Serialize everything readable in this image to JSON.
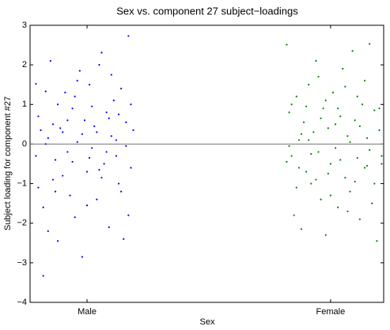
{
  "chart_data": {
    "type": "scatter",
    "title": "Sex vs. component 27 subject−loadings",
    "x_label": "Sex",
    "y_label": "Subject loading for component #27",
    "xlim": [
      0.766,
      2.218
    ],
    "xticks": [
      {
        "value": 1,
        "label": "Male"
      },
      {
        "value": 2,
        "label": "Female"
      }
    ],
    "ylim": [
      -4,
      3
    ],
    "yticks": [
      {
        "value": -4,
        "label": "−4"
      },
      {
        "value": -3,
        "label": "−3"
      },
      {
        "value": -2,
        "label": "−2"
      },
      {
        "value": -1,
        "label": "−1"
      },
      0,
      1,
      2,
      3
    ],
    "hline": 0,
    "series": [
      {
        "name": "Male",
        "color": "#0000ff",
        "x": [
          0.79,
          0.8,
          0.81,
          0.82,
          0.83,
          0.84,
          0.85,
          0.86,
          0.87,
          0.88,
          0.79,
          0.8,
          0.82,
          0.84,
          0.86,
          0.88,
          0.9,
          0.91,
          0.92,
          0.93,
          0.94,
          0.95,
          0.96,
          0.97,
          0.98,
          0.99,
          1.0,
          1.01,
          1.02,
          1.03,
          1.04,
          1.05,
          1.06,
          1.07,
          1.08,
          1.09,
          1.1,
          1.11,
          1.12,
          1.13,
          1.14,
          1.15,
          1.16,
          1.17,
          1.18,
          1.19,
          0.9,
          0.92,
          0.94,
          0.96,
          0.98,
          1.0,
          1.02,
          1.04,
          1.06,
          1.08,
          1.1,
          1.12,
          1.14,
          1.16,
          1.18,
          0.83,
          0.87,
          0.89,
          0.95,
          1.01,
          1.05,
          1.09,
          1.13,
          1.17
        ],
        "values": [
          1.52,
          -1.1,
          0.35,
          -3.33,
          1.33,
          -2.2,
          2.1,
          0.5,
          -0.4,
          1.0,
          -0.3,
          0.7,
          -1.6,
          0.15,
          -0.9,
          -2.45,
          0.3,
          1.3,
          -0.2,
          -1.3,
          0.9,
          -1.85,
          0.05,
          1.85,
          -2.85,
          0.6,
          -0.7,
          1.5,
          -0.1,
          0.45,
          -1.4,
          2.0,
          2.31,
          -0.5,
          0.8,
          -2.1,
          0.2,
          1.1,
          -0.3,
          -1.0,
          1.4,
          -2.4,
          0.55,
          2.73,
          -0.6,
          0.35,
          -0.8,
          0.6,
          -0.45,
          1.6,
          0.25,
          -1.55,
          0.95,
          0.3,
          -0.85,
          -0.2,
          1.75,
          0.1,
          -1.2,
          -0.05,
          1.0,
          0.0,
          -1.2,
          0.4,
          1.2,
          -0.35,
          -0.65,
          0.65,
          0.75,
          -1.8
        ]
      },
      {
        "name": "Female",
        "color": "#008000",
        "x": [
          1.82,
          1.83,
          1.84,
          1.85,
          1.86,
          1.87,
          1.88,
          1.89,
          1.9,
          1.91,
          1.92,
          1.93,
          1.94,
          1.95,
          1.96,
          1.97,
          1.98,
          1.99,
          2.0,
          2.01,
          2.02,
          2.03,
          2.04,
          2.05,
          2.06,
          2.07,
          2.08,
          2.09,
          2.1,
          2.11,
          2.12,
          2.13,
          2.14,
          2.15,
          2.16,
          2.17,
          2.18,
          2.19,
          2.2,
          2.21,
          1.82,
          1.84,
          1.86,
          1.88,
          1.9,
          1.92,
          1.94,
          1.96,
          1.98,
          2.0,
          2.02,
          2.04,
          2.06,
          2.08,
          2.1,
          2.12,
          2.14,
          2.16,
          2.18,
          2.2,
          2.21,
          1.83,
          1.87,
          1.91,
          1.95,
          1.99,
          2.03,
          2.07,
          2.11,
          2.15
        ],
        "values": [
          2.51,
          0.8,
          -0.3,
          -1.8,
          1.2,
          0.1,
          -2.15,
          0.55,
          -0.7,
          1.5,
          -1.0,
          0.3,
          2.1,
          -0.2,
          -1.4,
          0.9,
          -2.3,
          0.4,
          -0.5,
          1.3,
          -0.1,
          -1.6,
          0.7,
          1.9,
          -0.85,
          0.2,
          -1.2,
          2.35,
          0.6,
          -0.35,
          -1.9,
          1.0,
          -0.6,
          0.15,
          2.53,
          -1.5,
          0.85,
          -2.45,
          0.35,
          -0.3,
          -0.45,
          1.0,
          -1.1,
          0.25,
          0.95,
          -0.25,
          -0.9,
          0.65,
          1.1,
          -1.3,
          0.5,
          -0.4,
          1.45,
          0.05,
          -0.95,
          0.45,
          1.6,
          -0.15,
          -1.0,
          0.9,
          -0.5,
          -0.05,
          -0.6,
          0.1,
          1.7,
          -0.75,
          0.9,
          -1.7,
          1.2,
          -0.55
        ]
      }
    ]
  }
}
